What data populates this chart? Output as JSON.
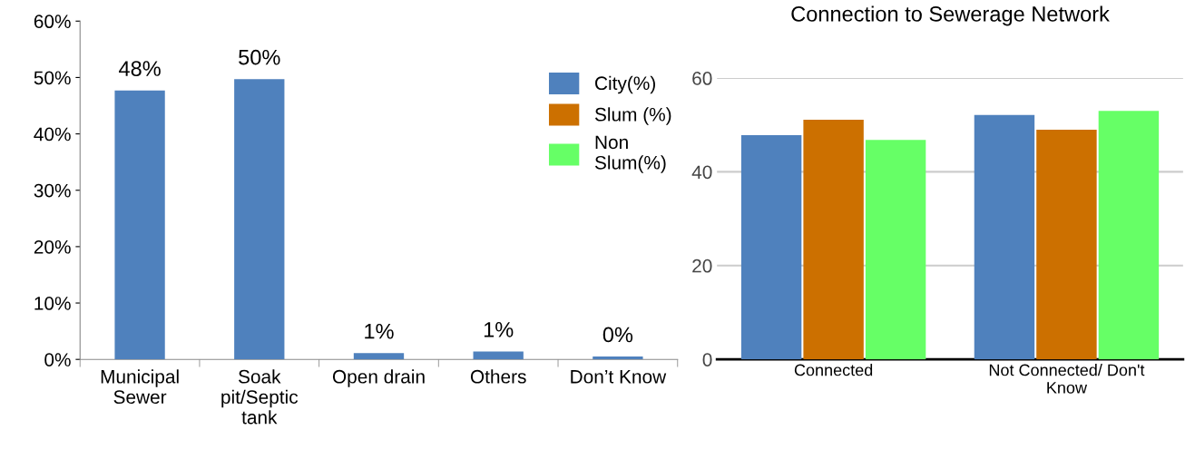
{
  "chart_data": [
    {
      "type": "bar",
      "categories": [
        "Municipal\nSewer",
        "Soak\npit/Septic\ntank",
        "Open drain",
        "Others",
        "Don’t Know"
      ],
      "values": [
        47.7,
        49.7,
        1.1,
        1.4,
        0.5
      ],
      "value_labels": [
        "48%",
        "50%",
        "1%",
        "1%",
        "0%"
      ],
      "color": "#4f81bd",
      "ylim": [
        0,
        60
      ],
      "yticks": [
        {
          "value": 0,
          "label": "0%"
        },
        {
          "value": 10,
          "label": "10%"
        },
        {
          "value": 20,
          "label": "20%"
        },
        {
          "value": 30,
          "label": "30%"
        },
        {
          "value": 40,
          "label": "40%"
        },
        {
          "value": 50,
          "label": "50%"
        },
        {
          "value": 60,
          "label": "60%"
        }
      ],
      "grid": false
    },
    {
      "type": "bar",
      "title": "Connection to Sewerage Network",
      "categories": [
        "Connected",
        "Not Connected/ Don't\nKnow"
      ],
      "series": [
        {
          "name": "City(%)",
          "color": "#4f81bd",
          "values": [
            47.8,
            52.1
          ]
        },
        {
          "name": "Slum (%)",
          "color": "#cc7000",
          "values": [
            51.1,
            49.0
          ]
        },
        {
          "name": "Non\nSlum(%)",
          "color": "#66ff66",
          "values": [
            46.8,
            53.0
          ]
        }
      ],
      "ylim": [
        0,
        60
      ],
      "yticks": [
        0,
        20,
        40,
        60
      ],
      "grid": "y",
      "legend": "left"
    }
  ]
}
